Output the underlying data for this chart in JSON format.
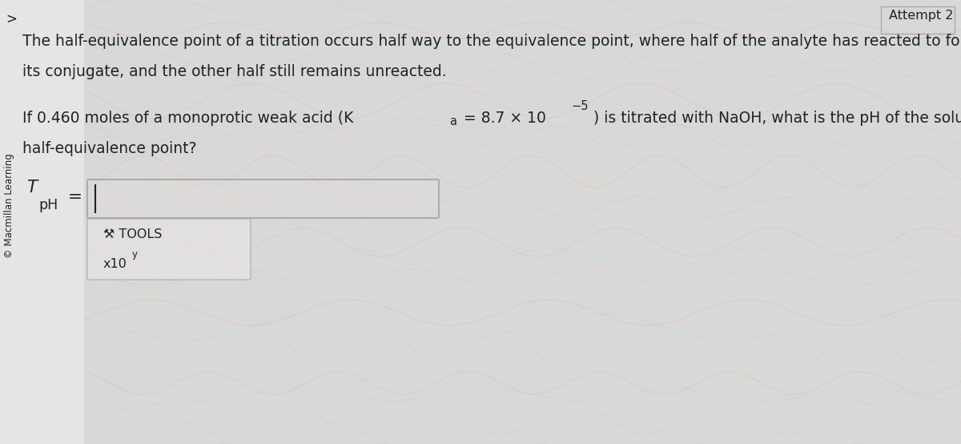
{
  "bg_color": "#d8d8d8",
  "title_text": "Attempt 2",
  "breadcrumb": ">",
  "sidebar_text": "© Macmillan Learning",
  "paragraph1_line1": "The half-equivalence point of a titration occurs half way to the equivalence point, where half of the analyte has reacted to form",
  "paragraph1_line2": "its conjugate, and the other half still remains unreacted.",
  "para2_pre_K": "If 0.460 moles of a monoprotic weak acid (K",
  "para2_Ka": "a",
  "para2_equals": " = 8.7 × 10",
  "para2_exp": "−5",
  "para2_post": ") is titrated with NaOH, what is the pH of the solution at the",
  "para2_line2": "half-equivalence point?",
  "pH_T": "T",
  "pH_sub": "pH",
  "pH_eq": "=",
  "tools_icon": "✔",
  "tools_text": " TOOLS",
  "x10_base": "x10",
  "x10_exp": "y",
  "font_main": 13.5,
  "font_small": 11.5,
  "font_attempt": 11.5,
  "font_sidebar": 8.5,
  "text_color": "#222222",
  "box_edge_color": "#888888",
  "box_fill_color": "#e0dada",
  "tools_edge_color": "#aaaaaa",
  "tools_fill_color": "#e8e4e4",
  "white_panel_color": "#f0efef",
  "wave_colors_pink": [
    "#e8b0b0",
    "#f0c8c0",
    "#e0c0c8",
    "#f8d0c8"
  ],
  "wave_colors_blue": [
    "#c0d8e8",
    "#b8d0e0",
    "#c8dce8"
  ],
  "wave_colors_yellow": [
    "#d8e8b0",
    "#e0ecc0",
    "#d0e8a8"
  ],
  "wave_colors_green": [
    "#b8d8c0",
    "#c0dcc8"
  ]
}
